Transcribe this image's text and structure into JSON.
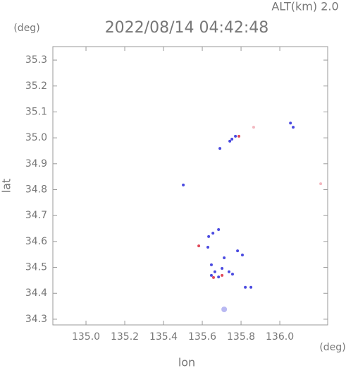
{
  "chart_data": {
    "type": "scatter",
    "title": "2022/08/14 04:42:48",
    "subtitle": "ALT(km) 2.0",
    "x_label": "lon",
    "y_label": "lat",
    "x_unit": "(deg)",
    "y_unit": "(deg)",
    "xlim": [
      134.829,
      136.247
    ],
    "ylim": [
      34.278,
      35.352
    ],
    "xticks": [
      {
        "value": 135,
        "label": "135.0"
      },
      135.2,
      135.4,
      135.6,
      135.8,
      {
        "value": 136,
        "label": "136.0"
      }
    ],
    "yticks": [
      34.3,
      34.4,
      34.5,
      34.6,
      34.7,
      34.8,
      34.9,
      {
        "value": 35,
        "label": "35.0"
      },
      35.1,
      35.2,
      35.3
    ],
    "series": [
      {
        "color": "#4a4ae0",
        "x": [
          136.055,
          136.069,
          135.753,
          135.771,
          135.742,
          135.691,
          135.502,
          135.633,
          135.655,
          135.629,
          135.684,
          135.782,
          135.807,
          135.647,
          135.713,
          135.665,
          135.702,
          135.738,
          135.647,
          135.684,
          135.756,
          135.822,
          135.851
        ],
        "values": [
          35.057,
          35.041,
          34.995,
          35.006,
          34.987,
          34.959,
          34.818,
          34.619,
          34.632,
          34.578,
          34.646,
          34.564,
          34.548,
          34.51,
          34.537,
          34.483,
          34.496,
          34.483,
          34.469,
          34.463,
          34.474,
          34.423,
          34.423
        ]
      },
      {
        "color": "#e04a5a",
        "x": [
          135.789,
          135.582,
          135.702,
          135.658
        ],
        "values": [
          35.006,
          34.583,
          34.469,
          34.461
        ]
      },
      {
        "color": "#f3b8c0",
        "x": [
          136.211,
          135.865
        ],
        "values": [
          34.823,
          35.041
        ]
      },
      {
        "color": "#b9b9f2",
        "x": [
          135.713
        ],
        "values": [
          34.338
        ]
      }
    ]
  }
}
